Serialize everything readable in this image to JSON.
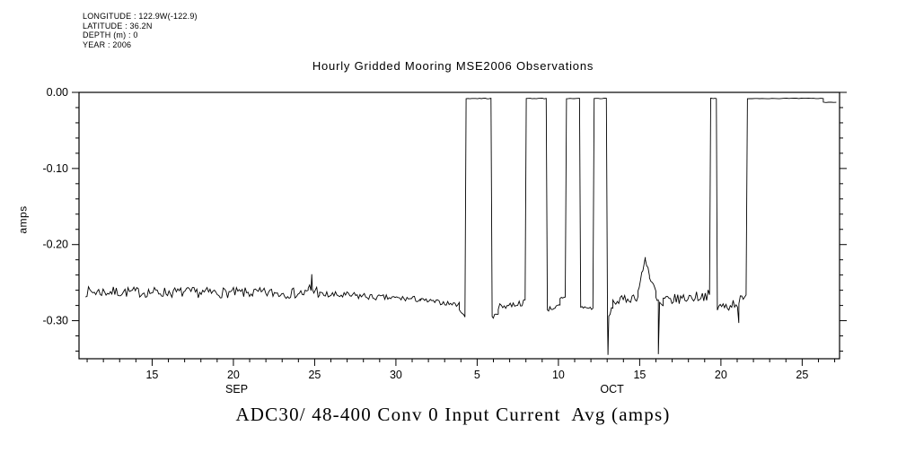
{
  "meta": {
    "lines": [
      "LONGITUDE : 122.9W(-122.9)",
      "LATITUDE : 36.2N",
      "DEPTH (m) : 0",
      "YEAR : 2006"
    ]
  },
  "title": "Hourly Gridded Mooring MSE2006 Observations",
  "footer_title": "ADC30/ 48-400 Conv 0 Input Current  Avg (amps)",
  "chart_data": {
    "type": "line",
    "title": "Hourly Gridded Mooring MSE2006 Observations",
    "bottom_title": "ADC30/ 48-400 Conv 0 Input Current  Avg (amps)",
    "ylabel": "amps",
    "xlabel": "",
    "line_color": "#000000",
    "background": "#ffffff",
    "grid": false,
    "legend": "none",
    "x_axis_note": "day of month, Sep-Oct 2006",
    "xlim": [
      10.5,
      57.3
    ],
    "ylim": [
      -0.35,
      0.0
    ],
    "yticks": [
      {
        "v": 0.0,
        "label": "0.00"
      },
      {
        "v": -0.1,
        "label": "-0.10"
      },
      {
        "v": -0.2,
        "label": "-0.20"
      },
      {
        "v": -0.3,
        "label": "-0.30"
      }
    ],
    "y_minor_step": 0.02,
    "x_minor_step": 1,
    "xticks": [
      {
        "v": 15,
        "label": "15"
      },
      {
        "v": 20,
        "label": "20"
      },
      {
        "v": 25,
        "label": "25"
      },
      {
        "v": 30,
        "label": "30"
      },
      {
        "v": 35,
        "label": "5"
      },
      {
        "v": 40,
        "label": "10"
      },
      {
        "v": 45,
        "label": "15"
      },
      {
        "v": 50,
        "label": "20"
      },
      {
        "v": 55,
        "label": "25"
      }
    ],
    "month_labels": [
      {
        "v": 20.2,
        "label": "SEP"
      },
      {
        "v": 43.3,
        "label": "OCT"
      }
    ],
    "segments": [
      {
        "x0": 10.9,
        "x1": 24.6,
        "y0": -0.262,
        "y1": -0.264,
        "noise": 0.007,
        "step": 0.09
      },
      {
        "x0": 24.6,
        "x1": 25.3,
        "y0": -0.258,
        "y1": -0.262,
        "noise": 0.009,
        "step": 0.09
      },
      {
        "x0": 25.3,
        "x1": 28.5,
        "y0": -0.266,
        "y1": -0.268,
        "noise": 0.005,
        "step": 0.09
      },
      {
        "x0": 28.5,
        "x1": 31.5,
        "y0": -0.269,
        "y1": -0.272,
        "noise": 0.004,
        "step": 0.09
      },
      {
        "x0": 31.5,
        "x1": 33.9,
        "y0": -0.273,
        "y1": -0.279,
        "noise": 0.003,
        "step": 0.09
      },
      {
        "x0": 33.9,
        "x1": 34.25,
        "y0": -0.284,
        "y1": -0.296,
        "noise": 0.002,
        "step": 0.08
      },
      {
        "x0": 34.32,
        "x1": 35.85,
        "y0": -0.008,
        "y1": -0.008,
        "noise": 0.0005,
        "step": 0.12
      },
      {
        "x0": 35.92,
        "x1": 36.3,
        "y0": -0.297,
        "y1": -0.289,
        "noise": 0.003,
        "step": 0.08
      },
      {
        "x0": 36.3,
        "x1": 37.95,
        "y0": -0.282,
        "y1": -0.276,
        "noise": 0.004,
        "step": 0.09
      },
      {
        "x0": 38.02,
        "x1": 39.25,
        "y0": -0.008,
        "y1": -0.008,
        "noise": 0.0005,
        "step": 0.12
      },
      {
        "x0": 39.32,
        "x1": 40.1,
        "y0": -0.285,
        "y1": -0.281,
        "noise": 0.003,
        "step": 0.08
      },
      {
        "x0": 40.1,
        "x1": 40.42,
        "y0": -0.272,
        "y1": -0.27,
        "noise": 0.003,
        "step": 0.08
      },
      {
        "x0": 40.5,
        "x1": 41.3,
        "y0": -0.008,
        "y1": -0.008,
        "noise": 0.0005,
        "step": 0.12
      },
      {
        "x0": 41.37,
        "x1": 42.12,
        "y0": -0.282,
        "y1": -0.284,
        "noise": 0.002,
        "step": 0.08
      },
      {
        "x0": 42.2,
        "x1": 42.95,
        "y0": -0.008,
        "y1": -0.008,
        "noise": 0.0005,
        "step": 0.12
      },
      {
        "x0": 43.02,
        "x1": 43.35,
        "y0": -0.3,
        "y1": -0.281,
        "noise": 0.003,
        "step": 0.08
      },
      {
        "x0": 43.35,
        "x1": 44.9,
        "y0": -0.276,
        "y1": -0.268,
        "noise": 0.006,
        "step": 0.09
      },
      {
        "x0": 44.9,
        "x1": 45.35,
        "y0": -0.262,
        "y1": -0.218,
        "noise": 0.004,
        "step": 0.08
      },
      {
        "x0": 45.35,
        "x1": 45.6,
        "y0": -0.218,
        "y1": -0.238,
        "noise": 0.004,
        "step": 0.08
      },
      {
        "x0": 45.6,
        "x1": 46.0,
        "y0": -0.244,
        "y1": -0.262,
        "noise": 0.005,
        "step": 0.08
      },
      {
        "x0": 46.0,
        "x1": 46.45,
        "y0": -0.272,
        "y1": -0.282,
        "noise": 0.005,
        "step": 0.08
      },
      {
        "x0": 46.45,
        "x1": 49.3,
        "y0": -0.274,
        "y1": -0.266,
        "noise": 0.007,
        "step": 0.09
      },
      {
        "x0": 49.37,
        "x1": 49.72,
        "y0": -0.008,
        "y1": -0.008,
        "noise": 0.0005,
        "step": 0.1
      },
      {
        "x0": 49.78,
        "x1": 51.55,
        "y0": -0.284,
        "y1": -0.272,
        "noise": 0.008,
        "step": 0.09
      },
      {
        "x0": 51.63,
        "x1": 56.3,
        "y0": -0.008,
        "y1": -0.008,
        "noise": 0.0004,
        "step": 0.15
      },
      {
        "x0": 56.3,
        "x1": 57.1,
        "y0": -0.013,
        "y1": -0.013,
        "noise": 0.0004,
        "step": 0.15
      }
    ],
    "spikes": [
      {
        "x": 24.82,
        "y": -0.239
      },
      {
        "x": 43.05,
        "y": -0.345
      },
      {
        "x": 46.15,
        "y": -0.344
      },
      {
        "x": 51.1,
        "y": -0.303
      }
    ]
  }
}
